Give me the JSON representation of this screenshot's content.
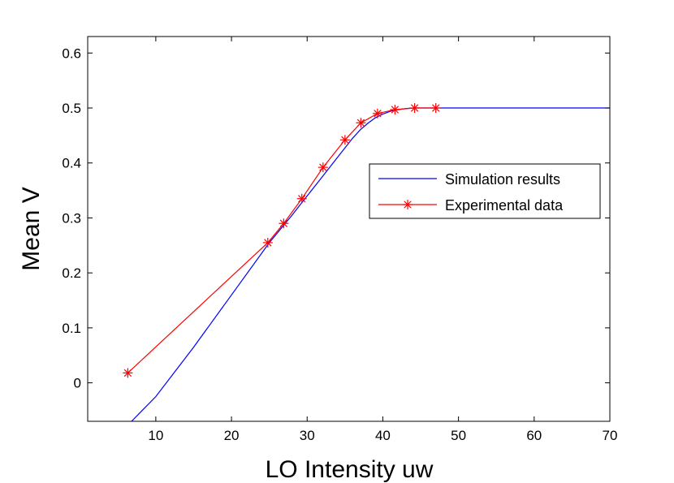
{
  "chart_data": {
    "type": "line",
    "title": "",
    "xlabel": "LO Intensity uw",
    "ylabel": "Mean V",
    "xlim": [
      1,
      70
    ],
    "ylim": [
      -0.07,
      0.63
    ],
    "xticks": [
      10,
      20,
      30,
      40,
      50,
      60,
      70
    ],
    "yticks": [
      0,
      0.1,
      0.2,
      0.3,
      0.4,
      0.5,
      0.6
    ],
    "xtick_labels": [
      "10",
      "20",
      "30",
      "40",
      "50",
      "60",
      "70"
    ],
    "ytick_labels": [
      "0",
      "0.1",
      "0.2",
      "0.3",
      "0.4",
      "0.5",
      "0.6"
    ],
    "grid": false,
    "legend_position": "center-right",
    "series": [
      {
        "name": "Simulation results",
        "color": "#0000ff",
        "marker": "none",
        "x": [
          6.8,
          10,
          15,
          20,
          25,
          28,
          30,
          32,
          34,
          36,
          37,
          38,
          39,
          40,
          41,
          42,
          43,
          44,
          45,
          47,
          50,
          55,
          60,
          70
        ],
        "y": [
          -0.07,
          -0.025,
          0.065,
          0.16,
          0.255,
          0.305,
          0.34,
          0.375,
          0.41,
          0.445,
          0.46,
          0.472,
          0.482,
          0.489,
          0.494,
          0.497,
          0.499,
          0.5,
          0.5,
          0.5,
          0.5,
          0.5,
          0.5,
          0.5
        ]
      },
      {
        "name": "Experimental data",
        "color": "#ff0000",
        "marker": "asterisk",
        "x": [
          6.3,
          24.8,
          26.9,
          29.3,
          32.1,
          35.0,
          37.1,
          39.3,
          41.6,
          44.2,
          47.0
        ],
        "y": [
          0.018,
          0.255,
          0.29,
          0.335,
          0.392,
          0.442,
          0.473,
          0.49,
          0.497,
          0.5,
          0.5
        ]
      }
    ]
  }
}
